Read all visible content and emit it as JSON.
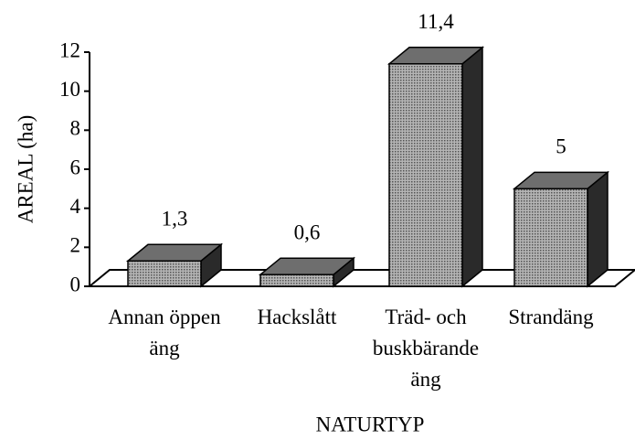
{
  "chart_data": {
    "type": "bar3d",
    "categories": [
      "Annan öppen\näng",
      "Hackslått",
      "Träd- och\nbuskbärande\näng",
      "Strandäng"
    ],
    "values": [
      1.3,
      0.6,
      11.4,
      5
    ],
    "value_labels": [
      "1,3",
      "0,6",
      "11,4",
      "5"
    ],
    "ylabel": "AREAL (ha)",
    "xlabel": "NATURTYP",
    "ylim": [
      0,
      12
    ],
    "yticks": [
      0,
      2,
      4,
      6,
      8,
      10,
      12
    ],
    "color": "#8c8c8c"
  }
}
